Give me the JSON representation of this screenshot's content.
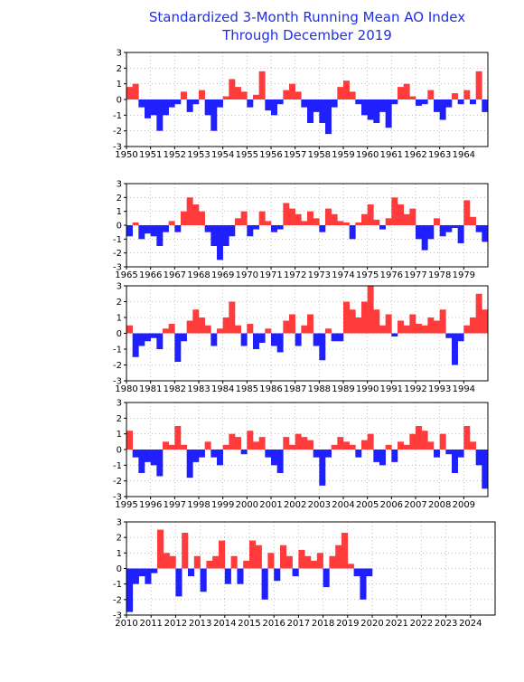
{
  "chart_data": [
    {
      "type": "area",
      "title": "Standardized 3-Month Running Mean AO Index",
      "subtitle": "Through December 2019",
      "positive_color": "#ff3b3b",
      "negative_color": "#2020ff",
      "grid": true,
      "xlim": [
        1950,
        1965
      ],
      "xticks": [
        1950,
        1951,
        1952,
        1953,
        1954,
        1955,
        1956,
        1957,
        1958,
        1959,
        1960,
        1961,
        1962,
        1963,
        1964
      ],
      "ylim": [
        -3,
        3
      ],
      "yticks": [
        -3,
        -2,
        -1,
        0,
        1,
        2,
        3
      ],
      "x": [
        1950,
        1950.25,
        1950.5,
        1950.75,
        1951,
        1951.25,
        1951.5,
        1951.75,
        1952,
        1952.25,
        1952.5,
        1952.75,
        1953,
        1953.25,
        1953.5,
        1953.75,
        1954,
        1954.25,
        1954.5,
        1954.75,
        1955,
        1955.25,
        1955.5,
        1955.75,
        1956,
        1956.25,
        1956.5,
        1956.75,
        1957,
        1957.25,
        1957.5,
        1957.75,
        1958,
        1958.25,
        1958.5,
        1958.75,
        1959,
        1959.25,
        1959.5,
        1959.75,
        1960,
        1960.25,
        1960.5,
        1960.75,
        1961,
        1961.25,
        1961.5,
        1961.75,
        1962,
        1962.25,
        1962.5,
        1962.75,
        1963,
        1963.25,
        1963.5,
        1963.75,
        1964,
        1964.25,
        1964.5,
        1964.75
      ],
      "values": [
        0.8,
        1.0,
        -0.5,
        -1.2,
        -1.0,
        -2.0,
        -1.0,
        -0.5,
        -0.3,
        0.5,
        -0.8,
        -0.3,
        0.6,
        -1.0,
        -2.0,
        -0.5,
        0.2,
        1.3,
        0.8,
        0.5,
        -0.5,
        0.3,
        1.8,
        -0.7,
        -1.0,
        -0.3,
        0.6,
        1.0,
        0.5,
        -0.5,
        -1.5,
        -0.8,
        -1.5,
        -2.2,
        -0.5,
        0.8,
        1.2,
        0.5,
        -0.3,
        -1.0,
        -1.3,
        -1.5,
        -0.8,
        -1.8,
        -0.3,
        0.8,
        1.0,
        0.2,
        -0.4,
        -0.3,
        0.6,
        -0.8,
        -1.3,
        -0.5,
        0.4,
        -0.3,
        0.6,
        -0.3,
        1.8,
        -0.8
      ]
    },
    {
      "type": "area",
      "positive_color": "#ff3b3b",
      "negative_color": "#2020ff",
      "grid": true,
      "xlim": [
        1965,
        1980
      ],
      "xticks": [
        1965,
        1966,
        1967,
        1968,
        1969,
        1970,
        1971,
        1972,
        1973,
        1974,
        1975,
        1976,
        1977,
        1978,
        1979
      ],
      "ylim": [
        -3,
        3
      ],
      "yticks": [
        -3,
        -2,
        -1,
        0,
        1,
        2,
        3
      ],
      "x": [
        1965,
        1965.25,
        1965.5,
        1965.75,
        1966,
        1966.25,
        1966.5,
        1966.75,
        1967,
        1967.25,
        1967.5,
        1967.75,
        1968,
        1968.25,
        1968.5,
        1968.75,
        1969,
        1969.25,
        1969.5,
        1969.75,
        1970,
        1970.25,
        1970.5,
        1970.75,
        1971,
        1971.25,
        1971.5,
        1971.75,
        1972,
        1972.25,
        1972.5,
        1972.75,
        1973,
        1973.25,
        1973.5,
        1973.75,
        1974,
        1974.25,
        1974.5,
        1974.75,
        1975,
        1975.25,
        1975.5,
        1975.75,
        1976,
        1976.25,
        1976.5,
        1976.75,
        1977,
        1977.25,
        1977.5,
        1977.75,
        1978,
        1978.25,
        1978.5,
        1978.75,
        1979,
        1979.25,
        1979.5,
        1979.75
      ],
      "values": [
        -0.8,
        0.2,
        -1.0,
        -0.6,
        -0.8,
        -1.5,
        -0.5,
        0.3,
        -0.5,
        1.0,
        2.0,
        1.5,
        1.0,
        -0.5,
        -1.5,
        -2.5,
        -1.5,
        -0.8,
        0.5,
        1.0,
        -0.8,
        -0.3,
        1.0,
        0.3,
        -0.5,
        -0.3,
        1.6,
        1.2,
        0.8,
        0.3,
        1.0,
        0.5,
        -0.5,
        1.2,
        0.8,
        0.3,
        0.2,
        -1.0,
        0.2,
        0.8,
        1.5,
        0.4,
        -0.3,
        0.5,
        2.0,
        1.5,
        0.8,
        1.2,
        -1.0,
        -1.8,
        -1.0,
        0.5,
        -0.8,
        -0.5,
        -0.2,
        -1.3,
        1.8,
        0.6,
        -0.5,
        -1.2
      ]
    },
    {
      "type": "area",
      "positive_color": "#ff3b3b",
      "negative_color": "#2020ff",
      "grid": true,
      "xlim": [
        1980,
        1995
      ],
      "xticks": [
        1980,
        1981,
        1982,
        1983,
        1984,
        1985,
        1986,
        1987,
        1988,
        1989,
        1990,
        1991,
        1992,
        1993,
        1994
      ],
      "ylim": [
        -3,
        3
      ],
      "yticks": [
        -3,
        -2,
        -1,
        0,
        1,
        2,
        3
      ],
      "x": [
        1980,
        1980.25,
        1980.5,
        1980.75,
        1981,
        1981.25,
        1981.5,
        1981.75,
        1982,
        1982.25,
        1982.5,
        1982.75,
        1983,
        1983.25,
        1983.5,
        1983.75,
        1984,
        1984.25,
        1984.5,
        1984.75,
        1985,
        1985.25,
        1985.5,
        1985.75,
        1986,
        1986.25,
        1986.5,
        1986.75,
        1987,
        1987.25,
        1987.5,
        1987.75,
        1988,
        1988.25,
        1988.5,
        1988.75,
        1989,
        1989.25,
        1989.5,
        1989.75,
        1990,
        1990.25,
        1990.5,
        1990.75,
        1991,
        1991.25,
        1991.5,
        1991.75,
        1992,
        1992.25,
        1992.5,
        1992.75,
        1993,
        1993.25,
        1993.5,
        1993.75,
        1994,
        1994.25,
        1994.5,
        1994.75
      ],
      "values": [
        0.5,
        -1.5,
        -0.8,
        -0.5,
        -0.3,
        -1.0,
        0.3,
        0.6,
        -1.8,
        -0.5,
        0.8,
        1.5,
        1.0,
        0.5,
        -0.8,
        0.3,
        1.0,
        2.0,
        0.5,
        -0.8,
        0.6,
        -1.0,
        -0.6,
        0.3,
        -0.8,
        -1.2,
        0.8,
        1.2,
        -0.8,
        0.5,
        1.2,
        -0.8,
        -1.7,
        0.3,
        -0.5,
        -0.5,
        2.0,
        1.5,
        1.0,
        2.0,
        3.0,
        1.5,
        0.5,
        1.2,
        -0.2,
        0.8,
        0.5,
        1.2,
        0.6,
        0.5,
        1.0,
        0.8,
        1.5,
        -0.3,
        -2.0,
        -0.5,
        0.5,
        1.0,
        2.5,
        1.5
      ]
    },
    {
      "type": "area",
      "positive_color": "#ff3b3b",
      "negative_color": "#2020ff",
      "grid": true,
      "xlim": [
        1995,
        2010
      ],
      "xticks": [
        1995,
        1996,
        1997,
        1998,
        1999,
        2000,
        2001,
        2002,
        2003,
        2004,
        2005,
        2006,
        2007,
        2008,
        2009
      ],
      "ylim": [
        -3,
        3
      ],
      "yticks": [
        -3,
        -2,
        -1,
        0,
        1,
        2,
        3
      ],
      "x": [
        1995,
        1995.25,
        1995.5,
        1995.75,
        1996,
        1996.25,
        1996.5,
        1996.75,
        1997,
        1997.25,
        1997.5,
        1997.75,
        1998,
        1998.25,
        1998.5,
        1998.75,
        1999,
        1999.25,
        1999.5,
        1999.75,
        2000,
        2000.25,
        2000.5,
        2000.75,
        2001,
        2001.25,
        2001.5,
        2001.75,
        2002,
        2002.25,
        2002.5,
        2002.75,
        2003,
        2003.25,
        2003.5,
        2003.75,
        2004,
        2004.25,
        2004.5,
        2004.75,
        2005,
        2005.25,
        2005.5,
        2005.75,
        2006,
        2006.25,
        2006.5,
        2006.75,
        2007,
        2007.25,
        2007.5,
        2007.75,
        2008,
        2008.25,
        2008.5,
        2008.75,
        2009,
        2009.25,
        2009.5,
        2009.75
      ],
      "values": [
        1.2,
        -0.5,
        -1.5,
        -0.8,
        -1.0,
        -1.7,
        0.5,
        0.3,
        1.5,
        0.3,
        -1.8,
        -0.8,
        -0.5,
        0.5,
        -0.5,
        -1.0,
        0.3,
        1.0,
        0.8,
        -0.3,
        1.2,
        0.5,
        0.8,
        -0.5,
        -1.0,
        -1.5,
        0.8,
        0.3,
        1.0,
        0.8,
        0.6,
        -0.5,
        -2.3,
        -0.5,
        0.3,
        0.8,
        0.5,
        0.3,
        -0.5,
        0.6,
        1.0,
        -0.8,
        -1.0,
        0.3,
        -0.8,
        0.5,
        0.3,
        1.0,
        1.5,
        1.2,
        0.5,
        -0.5,
        1.0,
        -0.3,
        -1.5,
        -0.5,
        1.5,
        0.5,
        -1.0,
        -2.5
      ]
    },
    {
      "type": "area",
      "positive_color": "#ff3b3b",
      "negative_color": "#2020ff",
      "grid": true,
      "xlim": [
        2010,
        2025
      ],
      "xticks": [
        2010,
        2011,
        2012,
        2013,
        2014,
        2015,
        2016,
        2017,
        2018,
        2019,
        2020,
        2021,
        2022,
        2023,
        2024
      ],
      "ylim": [
        -3,
        3
      ],
      "yticks": [
        -3,
        -2,
        -1,
        0,
        1,
        2,
        3
      ],
      "x": [
        2010,
        2010.25,
        2010.5,
        2010.75,
        2011,
        2011.25,
        2011.5,
        2011.75,
        2012,
        2012.25,
        2012.5,
        2012.75,
        2013,
        2013.25,
        2013.5,
        2013.75,
        2014,
        2014.25,
        2014.5,
        2014.75,
        2015,
        2015.25,
        2015.5,
        2015.75,
        2016,
        2016.25,
        2016.5,
        2016.75,
        2017,
        2017.25,
        2017.5,
        2017.75,
        2018,
        2018.25,
        2018.5,
        2018.75,
        2019,
        2019.25,
        2019.5,
        2019.75
      ],
      "values": [
        -2.8,
        -1.0,
        -0.5,
        -1.0,
        -0.3,
        2.5,
        1.0,
        0.8,
        -1.8,
        2.3,
        -0.5,
        0.8,
        -1.5,
        0.5,
        0.8,
        1.8,
        -1.0,
        0.8,
        -1.0,
        0.5,
        1.8,
        1.5,
        -2.0,
        1.0,
        -0.8,
        1.5,
        0.8,
        -0.5,
        1.2,
        0.8,
        0.5,
        1.0,
        -1.2,
        0.8,
        1.5,
        2.3,
        0.3,
        -0.5,
        -2.0,
        -0.5
      ]
    }
  ]
}
